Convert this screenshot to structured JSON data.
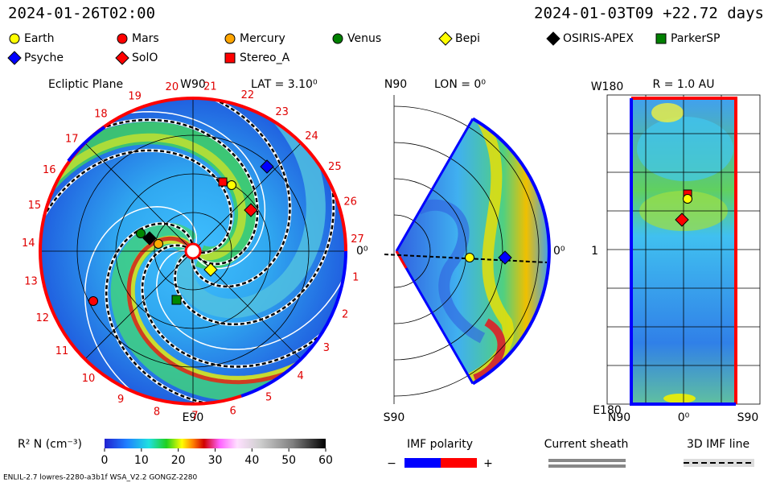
{
  "header": {
    "left_time": "2024-01-26T02:00",
    "right_time": "2024-01-03T09 +22.72 days"
  },
  "legend": [
    {
      "name": "Earth",
      "color": "#ffff00",
      "shape": "circle"
    },
    {
      "name": "Mars",
      "color": "#ff0000",
      "shape": "circle"
    },
    {
      "name": "Mercury",
      "color": "#ffa500",
      "shape": "circle"
    },
    {
      "name": "Venus",
      "color": "#008000",
      "shape": "circle"
    },
    {
      "name": "Bepi",
      "color": "#ffff00",
      "shape": "diamond"
    },
    {
      "name": "OSIRIS-APEX",
      "color": "#000000",
      "shape": "diamond"
    },
    {
      "name": "ParkerSP",
      "color": "#008000",
      "shape": "square"
    },
    {
      "name": "Psyche",
      "color": "#0000ff",
      "shape": "diamond"
    },
    {
      "name": "SolO",
      "color": "#ff0000",
      "shape": "diamond"
    },
    {
      "name": "Stereo_A",
      "color": "#ff0000",
      "shape": "square"
    }
  ],
  "panels": [
    {
      "title": "Ecliptic Plane",
      "top_label": "W90",
      "info": "LAT = 3.10⁰",
      "bottom_label": "E90",
      "right_label": "0⁰",
      "sector_labels": [
        1,
        2,
        3,
        4,
        5,
        6,
        7,
        8,
        9,
        10,
        11,
        12,
        13,
        14,
        15,
        16,
        17,
        18,
        19,
        20,
        21,
        22,
        23,
        24,
        25,
        26,
        27
      ]
    },
    {
      "top_label": "N90",
      "info": "LON = 0⁰",
      "bottom_label": "S90",
      "right_label": "0⁰"
    },
    {
      "top_label": "W180",
      "info": "R = 1.0 AU",
      "bottom_label": "E180",
      "left_label": "1",
      "x_labels": [
        "N90",
        "0⁰",
        "S90"
      ]
    }
  ],
  "colorbar": {
    "label": "R² N (cm⁻³)",
    "lim": [
      0,
      60
    ],
    "ticks": [
      0,
      10,
      20,
      30,
      40,
      50,
      60
    ]
  },
  "imf_polarity": {
    "title": "IMF polarity",
    "minus": "−",
    "plus": "+"
  },
  "current_sheath": "Current sheath",
  "imf_line": "3D IMF line",
  "footer": "ENLIL-2.7 lowres-2280-a3b1f WSA_V2.2 GONGZ-2280"
}
